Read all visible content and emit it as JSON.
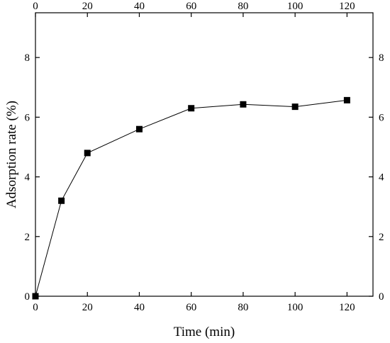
{
  "chart_data": {
    "type": "line",
    "xlabel": "Time (min)",
    "ylabel": "Adsorption rate (%)",
    "xlim": [
      0,
      130
    ],
    "ylim": [
      0,
      9.5
    ],
    "x_ticks": [
      0,
      20,
      40,
      60,
      80,
      100,
      120
    ],
    "y_ticks": [
      0,
      2,
      4,
      6,
      8
    ],
    "mirror_axes": true,
    "grid": false,
    "marker": "square",
    "series": [
      {
        "x": [
          0,
          10,
          20,
          40,
          60,
          80,
          100,
          120
        ],
        "y": [
          0,
          3.2,
          4.8,
          5.6,
          6.3,
          6.43,
          6.35,
          6.57
        ]
      }
    ]
  }
}
